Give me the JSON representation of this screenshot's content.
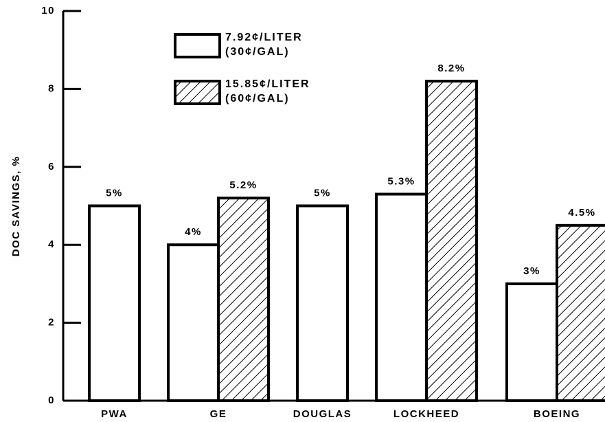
{
  "chart_data": {
    "type": "bar",
    "ylabel": "DOC SAVINGS, %",
    "categories": [
      "PWA",
      "GE",
      "DOUGLAS",
      "LOCKHEED",
      "BOEING"
    ],
    "series": [
      {
        "name": "7.92¢/LITER (30¢/GAL)",
        "color": "#000000",
        "hatch": false,
        "values": [
          5,
          4,
          5,
          5.3,
          3
        ],
        "value_labels": [
          "5%",
          "4%",
          "5%",
          "5.3%",
          "3%"
        ]
      },
      {
        "name": "15.85¢/LITER (60¢/GAL)",
        "color": "#000000",
        "hatch": true,
        "values": [
          null,
          5.2,
          null,
          8.2,
          4.5
        ],
        "value_labels": [
          null,
          "5.2%",
          null,
          "8.2%",
          "4.5%"
        ]
      }
    ],
    "ylim": [
      0,
      10
    ],
    "yticks": [
      0,
      2,
      4,
      6,
      8,
      10
    ],
    "grid": false
  }
}
